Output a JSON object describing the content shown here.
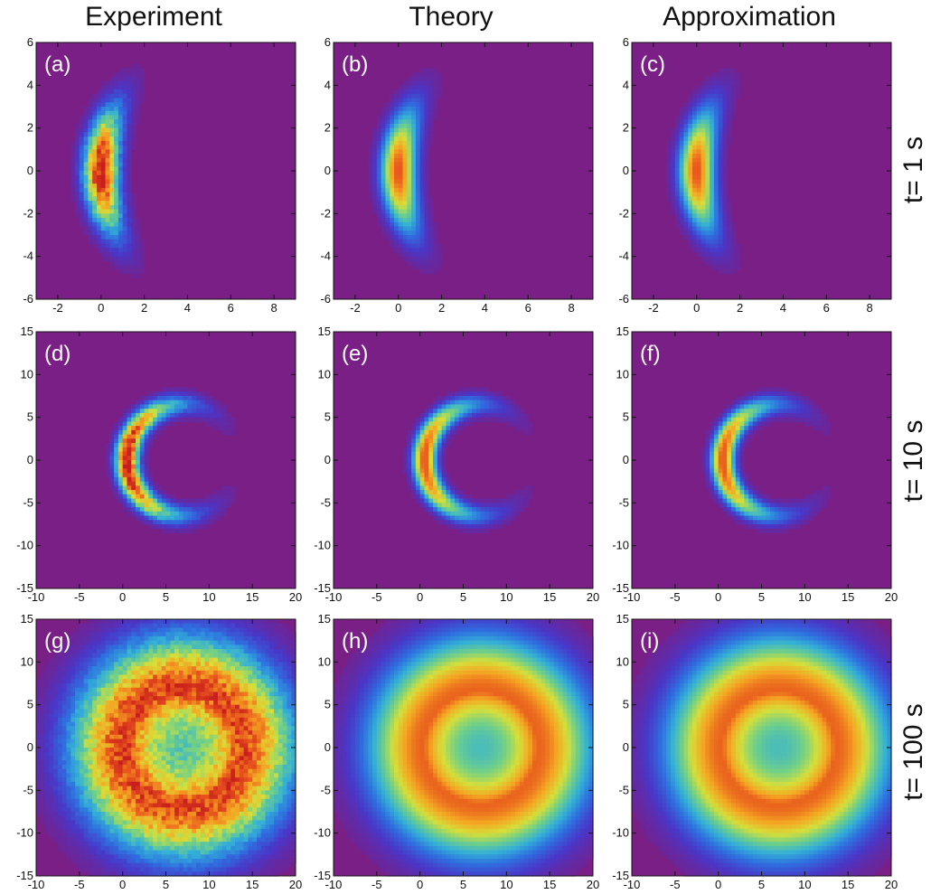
{
  "columns": [
    "Experiment",
    "Theory",
    "Approximation"
  ],
  "rows": [
    "t= 1 s",
    "t= 10 s",
    "t= 100 s"
  ],
  "colors": {
    "background": "#7a1f86",
    "colormap": [
      "#7a1f86",
      "#4a37c8",
      "#2f6fe0",
      "#34b0d8",
      "#6fd08a",
      "#d6e03a",
      "#f5a623",
      "#e8531d",
      "#c81e1e"
    ]
  },
  "chart_data": [
    {
      "type": "heatmap",
      "panel": "(a)",
      "column": "Experiment",
      "row": "t= 1 s",
      "xlim": [
        -3,
        9
      ],
      "ylim": [
        -6,
        6
      ],
      "xticks": [
        "-2",
        "0",
        "2",
        "4",
        "6",
        "8"
      ],
      "yticks": [
        "-6",
        "-4",
        "-2",
        "0",
        "2",
        "4",
        "6"
      ],
      "shape": "arc",
      "center": [
        7,
        0
      ],
      "radius": 7,
      "half_angle_deg": 42,
      "width": 1.3,
      "peak": 1.0,
      "noise": 0.14
    },
    {
      "type": "heatmap",
      "panel": "(b)",
      "column": "Theory",
      "row": "t= 1 s",
      "xlim": [
        -3,
        9
      ],
      "ylim": [
        -6,
        6
      ],
      "xticks": [
        "-2",
        "0",
        "2",
        "4",
        "6",
        "8"
      ],
      "yticks": [
        "-6",
        "-4",
        "-2",
        "0",
        "2",
        "4",
        "6"
      ],
      "shape": "arc",
      "center": [
        7,
        0
      ],
      "radius": 7,
      "half_angle_deg": 42,
      "width": 1.3,
      "peak": 0.88,
      "noise": 0
    },
    {
      "type": "heatmap",
      "panel": "(c)",
      "column": "Approximation",
      "row": "t= 1 s",
      "xlim": [
        -3,
        9
      ],
      "ylim": [
        -6,
        6
      ],
      "xticks": [
        "-2",
        "0",
        "2",
        "4",
        "6",
        "8"
      ],
      "yticks": [
        "-6",
        "-4",
        "-2",
        "0",
        "2",
        "4",
        "6"
      ],
      "shape": "arc",
      "center": [
        7,
        0
      ],
      "radius": 7,
      "half_angle_deg": 42,
      "width": 1.3,
      "peak": 0.88,
      "noise": 0
    },
    {
      "type": "heatmap",
      "panel": "(d)",
      "column": "Experiment",
      "row": "t= 10 s",
      "xlim": [
        -10,
        20
      ],
      "ylim": [
        -15,
        15
      ],
      "xticks": [
        "-10",
        "-5",
        "0",
        "5",
        "10",
        "15",
        "20"
      ],
      "yticks": [
        "-15",
        "-10",
        "-5",
        "0",
        "5",
        "10",
        "15"
      ],
      "shape": "arc",
      "center": [
        7,
        0
      ],
      "radius": 6.5,
      "half_angle_deg": 150,
      "width": 2.2,
      "peak": 1.0,
      "noise": 0.12
    },
    {
      "type": "heatmap",
      "panel": "(e)",
      "column": "Theory",
      "row": "t= 10 s",
      "xlim": [
        -10,
        20
      ],
      "ylim": [
        -15,
        15
      ],
      "xticks": [
        "-10",
        "-5",
        "0",
        "5",
        "10",
        "15",
        "20"
      ],
      "yticks": [
        "-15",
        "-10",
        "-5",
        "0",
        "5",
        "10",
        "15"
      ],
      "shape": "arc",
      "center": [
        7,
        0
      ],
      "radius": 6.5,
      "half_angle_deg": 150,
      "width": 2.2,
      "peak": 0.88,
      "noise": 0
    },
    {
      "type": "heatmap",
      "panel": "(f)",
      "column": "Approximation",
      "row": "t= 10 s",
      "xlim": [
        -10,
        20
      ],
      "ylim": [
        -15,
        15
      ],
      "xticks": [
        "-10",
        "-5",
        "0",
        "5",
        "10",
        "15",
        "20"
      ],
      "yticks": [
        "-15",
        "-10",
        "-5",
        "0",
        "5",
        "10",
        "15"
      ],
      "shape": "arc",
      "center": [
        7,
        0
      ],
      "radius": 6.5,
      "half_angle_deg": 150,
      "width": 2.2,
      "peak": 0.88,
      "noise": 0
    },
    {
      "type": "heatmap",
      "panel": "(g)",
      "column": "Experiment",
      "row": "t= 100 s",
      "xlim": [
        -10,
        20
      ],
      "ylim": [
        -15,
        15
      ],
      "xticks": [
        "-10",
        "-5",
        "0",
        "5",
        "10",
        "15",
        "20"
      ],
      "yticks": [
        "-15",
        "-10",
        "-5",
        "0",
        "5",
        "10",
        "15"
      ],
      "shape": "ring",
      "center": [
        7,
        0
      ],
      "radius": 6.5,
      "width": 6.5,
      "floor": 0.5,
      "peak": 0.92,
      "noise": 0.12
    },
    {
      "type": "heatmap",
      "panel": "(h)",
      "column": "Theory",
      "row": "t= 100 s",
      "xlim": [
        -10,
        20
      ],
      "ylim": [
        -15,
        15
      ],
      "xticks": [
        "-10",
        "-5",
        "0",
        "5",
        "10",
        "15",
        "20"
      ],
      "yticks": [
        "-15",
        "-10",
        "-5",
        "0",
        "5",
        "10",
        "15"
      ],
      "shape": "ring",
      "center": [
        7,
        0
      ],
      "radius": 6.5,
      "width": 6.5,
      "floor": 0.5,
      "peak": 0.85,
      "noise": 0
    },
    {
      "type": "heatmap",
      "panel": "(i)",
      "column": "Approximation",
      "row": "t= 100 s",
      "xlim": [
        -10,
        20
      ],
      "ylim": [
        -15,
        15
      ],
      "xticks": [
        "-10",
        "-5",
        "0",
        "5",
        "10",
        "15",
        "20"
      ],
      "yticks": [
        "-15",
        "-10",
        "-5",
        "0",
        "5",
        "10",
        "15"
      ],
      "shape": "ring",
      "center": [
        7,
        0
      ],
      "radius": 6.5,
      "width": 6.5,
      "floor": 0.5,
      "peak": 0.85,
      "noise": 0
    }
  ]
}
